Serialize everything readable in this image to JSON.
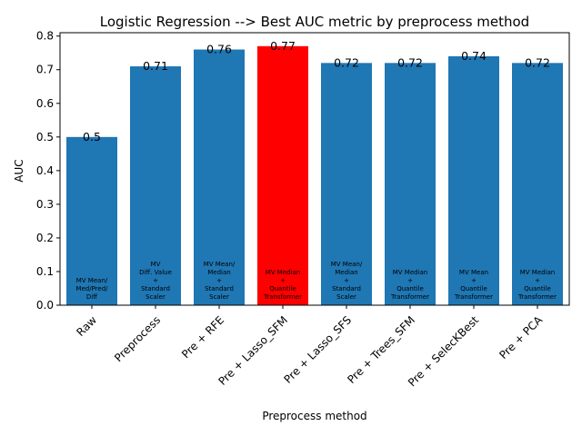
{
  "chart_data": {
    "type": "bar",
    "title": "Logistic Regression --> Best AUC metric by preprocess method",
    "xlabel": "Preprocess method",
    "ylabel": "AUC",
    "ylim": [
      0,
      0.81
    ],
    "yticks": [
      "0.0",
      "0.1",
      "0.2",
      "0.3",
      "0.4",
      "0.5",
      "0.6",
      "0.7",
      "0.8"
    ],
    "categories": [
      "Raw",
      "Preprocess",
      "Pre + RFE",
      "Pre + Lasso_SFM",
      "Pre + Lasso_SFS",
      "Pre + Trees_SFM",
      "Pre + SelecKBest",
      "Pre + PCA"
    ],
    "values": [
      0.5,
      0.71,
      0.76,
      0.77,
      0.72,
      0.72,
      0.74,
      0.72
    ],
    "value_labels": [
      "0.5",
      "0.71",
      "0.76",
      "0.77",
      "0.72",
      "0.72",
      "0.74",
      "0.72"
    ],
    "bar_annotations": [
      [
        "MV Mean/",
        "Med/Pred/",
        "Diff"
      ],
      [
        "MV",
        "Diff. Value",
        "+",
        "Standard",
        "Scaler"
      ],
      [
        "MV Mean/",
        "Median",
        "+",
        "Standard",
        "Scaler"
      ],
      [
        "MV Median",
        "+",
        "Quantile",
        "Transformer"
      ],
      [
        "MV Mean/",
        "Median",
        "+",
        "Standard",
        "Scaler"
      ],
      [
        "MV Median",
        "+",
        "Quantile",
        "Transformer"
      ],
      [
        "MV Mean",
        "+",
        "Quantile",
        "Transformer"
      ],
      [
        "MV Median",
        "+",
        "Quantile",
        "Transformer"
      ]
    ],
    "bar_colors": [
      "#1f77b4",
      "#1f77b4",
      "#1f77b4",
      "#ff0000",
      "#1f77b4",
      "#1f77b4",
      "#1f77b4",
      "#1f77b4"
    ],
    "grid": false,
    "legend": "none"
  }
}
